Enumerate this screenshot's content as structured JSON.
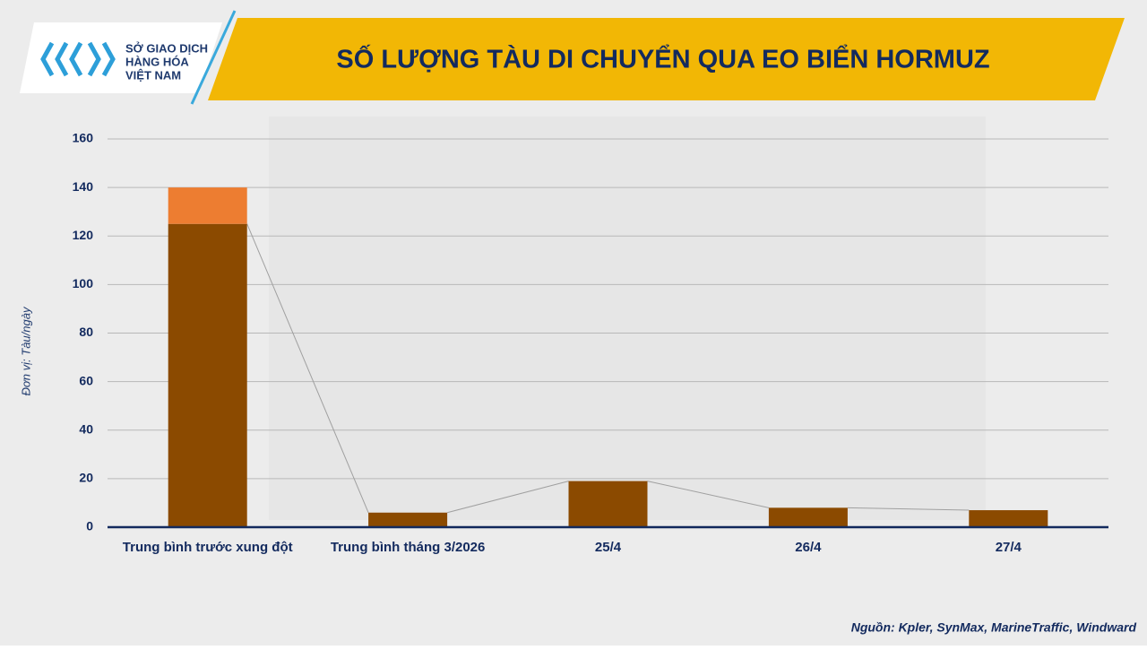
{
  "logo": {
    "lines": [
      "SỞ GIAO DỊCH",
      "HÀNG HÓA",
      "VIỆT NAM"
    ]
  },
  "chart_data": {
    "type": "bar",
    "stacked": true,
    "title": "SỐ LƯỢNG TÀU DI CHUYỂN QUA EO BIỂN HORMUZ",
    "y_label": "Đơn vị: Tàu/ngày",
    "source": "Nguồn: Kpler, SynMax, MarineTraffic,  Windward",
    "categories": [
      "Trung bình trước xung đột",
      "Trung bình tháng 3/2026",
      "25/4",
      "26/4",
      "27/4"
    ],
    "series": [
      {
        "color": "#8b4a00",
        "values": [
          125,
          6,
          19,
          8,
          7
        ]
      },
      {
        "color": "#ed7d31",
        "values": [
          15,
          null,
          null,
          null,
          null
        ]
      }
    ],
    "ylim": [
      0,
      160
    ],
    "yticks": [
      0,
      20,
      40,
      60,
      80,
      100,
      120,
      140,
      160
    ],
    "grid": true
  }
}
